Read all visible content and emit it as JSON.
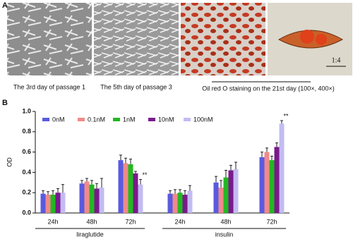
{
  "panel_a": {
    "label": "A",
    "captions": [
      "The 3rd day of passage 1",
      "The 5th day of passage 3",
      "Oil red O staining on the 21st day (100×, 400×)"
    ],
    "scale_bar": "1:4"
  },
  "chart_data": {
    "type": "bar",
    "panel_label": "B",
    "ylabel": "OD",
    "categories": [
      "24h",
      "48h",
      "72h",
      "24h",
      "48h",
      "72h"
    ],
    "groups": [
      "liraglutide",
      "insulin"
    ],
    "series": [
      {
        "name": "0nM",
        "color": "#5a5ae0",
        "values": [
          0.19,
          0.29,
          0.52,
          0.19,
          0.3,
          0.55
        ],
        "errors": [
          0.03,
          0.03,
          0.05,
          0.03,
          0.06,
          0.05
        ]
      },
      {
        "name": "0.1nM",
        "color": "#f08a8a",
        "values": [
          0.18,
          0.31,
          0.49,
          0.19,
          0.25,
          0.6
        ],
        "errors": [
          0.03,
          0.03,
          0.05,
          0.04,
          0.07,
          0.04
        ]
      },
      {
        "name": "1nM",
        "color": "#22b822",
        "values": [
          0.18,
          0.28,
          0.48,
          0.2,
          0.35,
          0.52
        ],
        "errors": [
          0.04,
          0.04,
          0.05,
          0.03,
          0.07,
          0.04
        ]
      },
      {
        "name": "10nM",
        "color": "#7a1a8c",
        "values": [
          0.2,
          0.24,
          0.39,
          0.18,
          0.42,
          0.65
        ],
        "errors": [
          0.04,
          0.05,
          0.02,
          0.04,
          0.05,
          0.04
        ]
      },
      {
        "name": "100nM",
        "color": "#c2bcf2",
        "values": [
          0.2,
          0.25,
          0.28,
          0.22,
          0.43,
          0.88
        ],
        "errors": [
          0.08,
          0.09,
          0.05,
          0.05,
          0.07,
          0.03
        ],
        "significance": [
          null,
          null,
          "**",
          null,
          null,
          "**"
        ]
      }
    ],
    "ylim": [
      0,
      1
    ],
    "yticks": [
      {
        "value": 0,
        "label": "0.0"
      },
      0.2,
      0.4,
      0.6,
      0.8,
      {
        "value": 1,
        "label": "1.0"
      }
    ]
  }
}
